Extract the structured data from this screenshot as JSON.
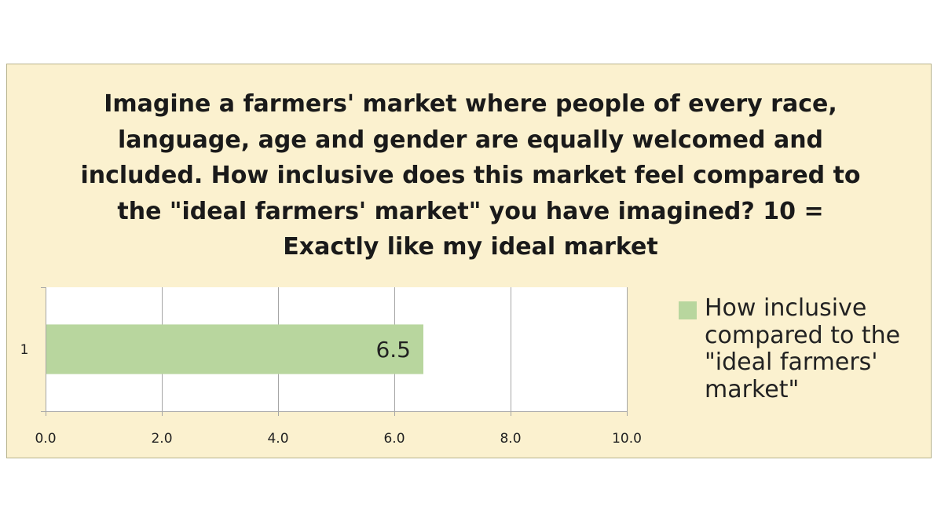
{
  "colors": {
    "background": "#fbf1cf",
    "plot_area": "#ffffff",
    "bar": "#b8d69e",
    "gridline": "#a6a6a6",
    "frame_border": "#b8b48c"
  },
  "chart_data": {
    "type": "bar",
    "orientation": "horizontal",
    "title": "Imagine a farmers' market where people of every race,\nlanguage, age and gender are equally welcomed and\nincluded. How inclusive does this market feel compared to\nthe \"ideal farmers' market\" you have imagined? 10 =\nExactly like my ideal market",
    "categories": [
      "1"
    ],
    "series": [
      {
        "name": "How inclusive\ncompared to the\n\"ideal farmers'\nmarket\"",
        "values": [
          6.5
        ],
        "data_labels": [
          "6.5"
        ]
      }
    ],
    "xlim": [
      0,
      10
    ],
    "x_ticks": [
      0,
      2,
      4,
      6,
      8,
      10
    ],
    "x_tick_labels": [
      "0.0",
      "2.0",
      "4.0",
      "6.0",
      "8.0",
      "10.0"
    ],
    "grid": true,
    "legend_position": "right"
  }
}
